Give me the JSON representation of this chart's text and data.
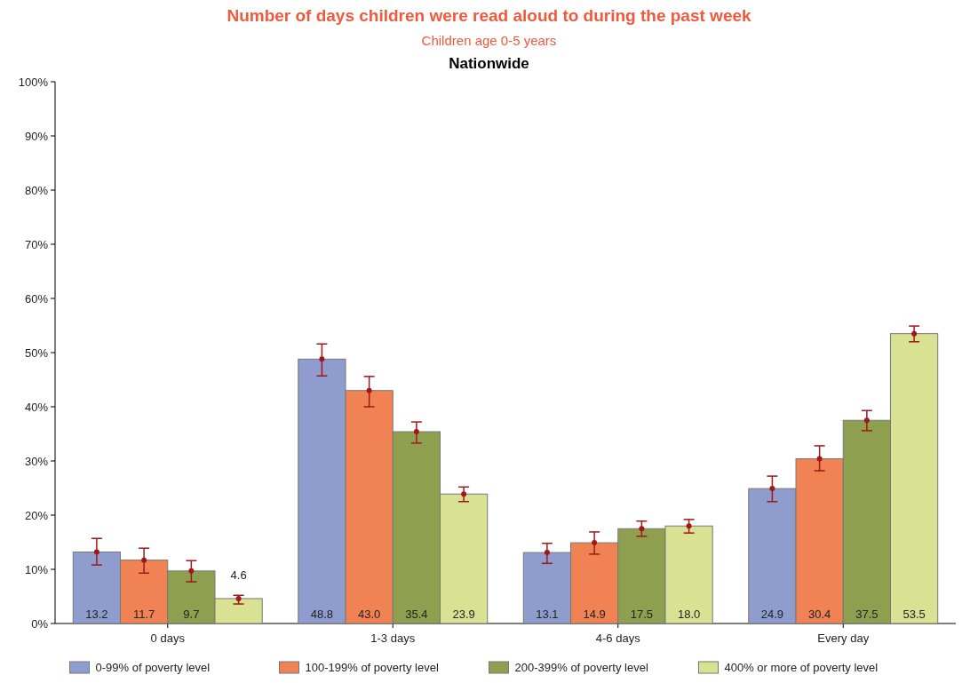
{
  "chart_data": {
    "type": "bar",
    "title": "Number of days children were read aloud to during the past week",
    "subtitle": "Children age 0-5 years",
    "annotations": [
      "Nationwide"
    ],
    "categories": [
      "0 days",
      "1-3 days",
      "4-6 days",
      "Every day"
    ],
    "ylim": [
      0,
      100
    ],
    "yticks": [
      {
        "value": 0,
        "label": "0%"
      },
      {
        "value": 10,
        "label": "10%"
      },
      {
        "value": 20,
        "label": "20%"
      },
      {
        "value": 30,
        "label": "30%"
      },
      {
        "value": 40,
        "label": "40%"
      },
      {
        "value": 50,
        "label": "50%"
      },
      {
        "value": 60,
        "label": "60%"
      },
      {
        "value": 70,
        "label": "70%"
      },
      {
        "value": 80,
        "label": "80%"
      },
      {
        "value": 90,
        "label": "90%"
      },
      {
        "value": 100,
        "label": "100%"
      }
    ],
    "grid": false,
    "legend": "bottom",
    "marker": "circle",
    "series": [
      {
        "name": "0-99% of poverty level",
        "color": "#8f9cce",
        "values": [
          13.2,
          48.8,
          13.1,
          24.9
        ],
        "value_labels": [
          "13.2",
          "48.8",
          "13.1",
          "24.9"
        ],
        "errors": [
          [
            10.8,
            15.7
          ],
          [
            45.7,
            51.6
          ],
          [
            11.1,
            14.8
          ],
          [
            22.5,
            27.2
          ]
        ]
      },
      {
        "name": "100-199% of poverty level",
        "color": "#f08253",
        "values": [
          11.7,
          43.0,
          14.9,
          30.4
        ],
        "value_labels": [
          "11.7",
          "43.0",
          "14.9",
          "30.4"
        ],
        "errors": [
          [
            9.3,
            13.9
          ],
          [
            40.0,
            45.6
          ],
          [
            12.8,
            16.9
          ],
          [
            28.2,
            32.8
          ]
        ]
      },
      {
        "name": "200-399% of poverty level",
        "color": "#8ea04f",
        "values": [
          9.7,
          35.4,
          17.5,
          37.5
        ],
        "value_labels": [
          "9.7",
          "35.4",
          "17.5",
          "37.5"
        ],
        "errors": [
          [
            7.7,
            11.6
          ],
          [
            33.3,
            37.2
          ],
          [
            16.1,
            18.9
          ],
          [
            35.6,
            39.3
          ]
        ]
      },
      {
        "name": "400% or more of poverty level",
        "color": "#d9e193",
        "values": [
          4.6,
          23.9,
          18.0,
          53.5
        ],
        "value_labels": [
          "4.6",
          "23.9",
          "18.0",
          "53.5"
        ],
        "errors": [
          [
            3.6,
            5.2
          ],
          [
            22.5,
            25.2
          ],
          [
            16.7,
            19.2
          ],
          [
            52.0,
            54.9
          ]
        ]
      }
    ]
  }
}
